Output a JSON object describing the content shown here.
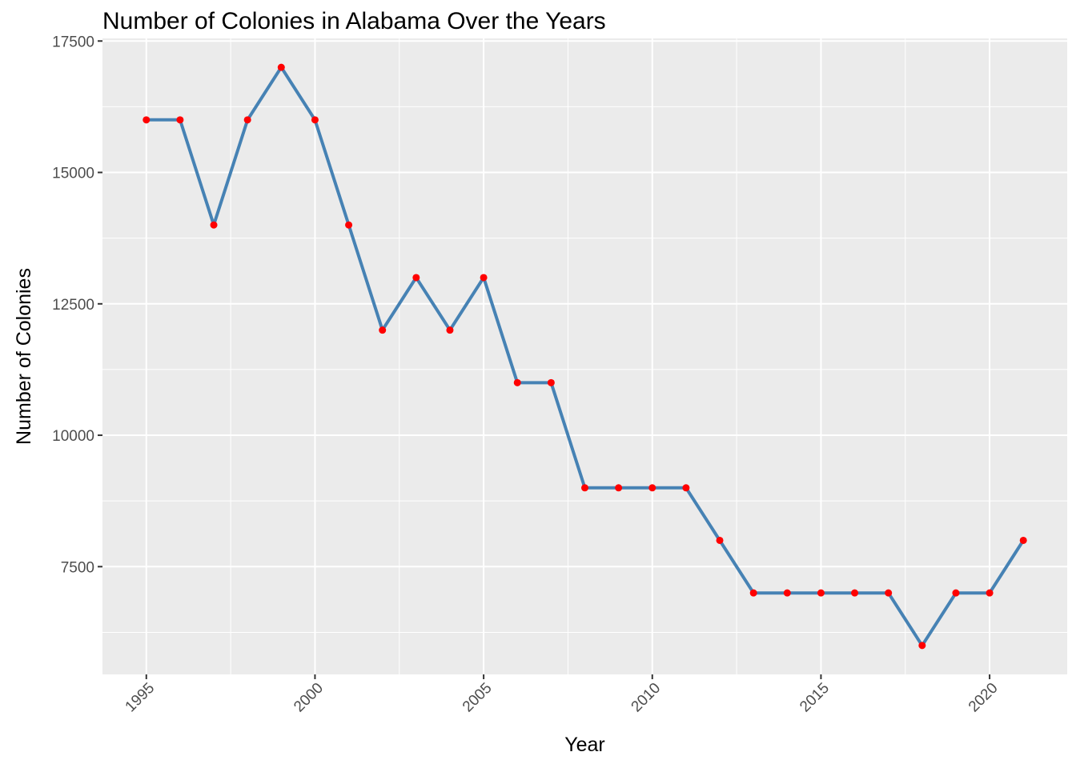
{
  "chart_data": {
    "type": "line",
    "title": "Number of Colonies in Alabama Over the Years",
    "xlabel": "Year",
    "ylabel": "Number of Colonies",
    "x": [
      1995,
      1996,
      1997,
      1998,
      1999,
      2000,
      2001,
      2002,
      2003,
      2004,
      2005,
      2006,
      2007,
      2008,
      2009,
      2010,
      2011,
      2012,
      2013,
      2014,
      2015,
      2016,
      2017,
      2018,
      2019,
      2020,
      2021
    ],
    "series": [
      {
        "values": [
          16000,
          16000,
          14000,
          16000,
          17000,
          16000,
          14000,
          12000,
          13000,
          12000,
          13000,
          11000,
          11000,
          9000,
          9000,
          9000,
          9000,
          8000,
          7000,
          7000,
          7000,
          7000,
          7000,
          6000,
          7000,
          7000,
          8000
        ],
        "line_color": "#4682b4",
        "point_color": "#ff0000"
      }
    ],
    "xlim": [
      1993.7,
      2022.3
    ],
    "ylim": [
      5450,
      17550
    ],
    "xticks": [
      1995,
      2000,
      2005,
      2010,
      2015,
      2020
    ],
    "xtick_labels": [
      "1995",
      "2000",
      "2005",
      "2010",
      "2015",
      "2020"
    ],
    "yticks": [
      7500,
      10000,
      12500,
      15000,
      17500
    ],
    "ytick_labels": [
      "7500",
      "10000",
      "12500",
      "15000",
      "17500"
    ],
    "grid": true,
    "legend": "none",
    "panel_color": "#ebebeb",
    "grid_color": "#ffffff"
  }
}
